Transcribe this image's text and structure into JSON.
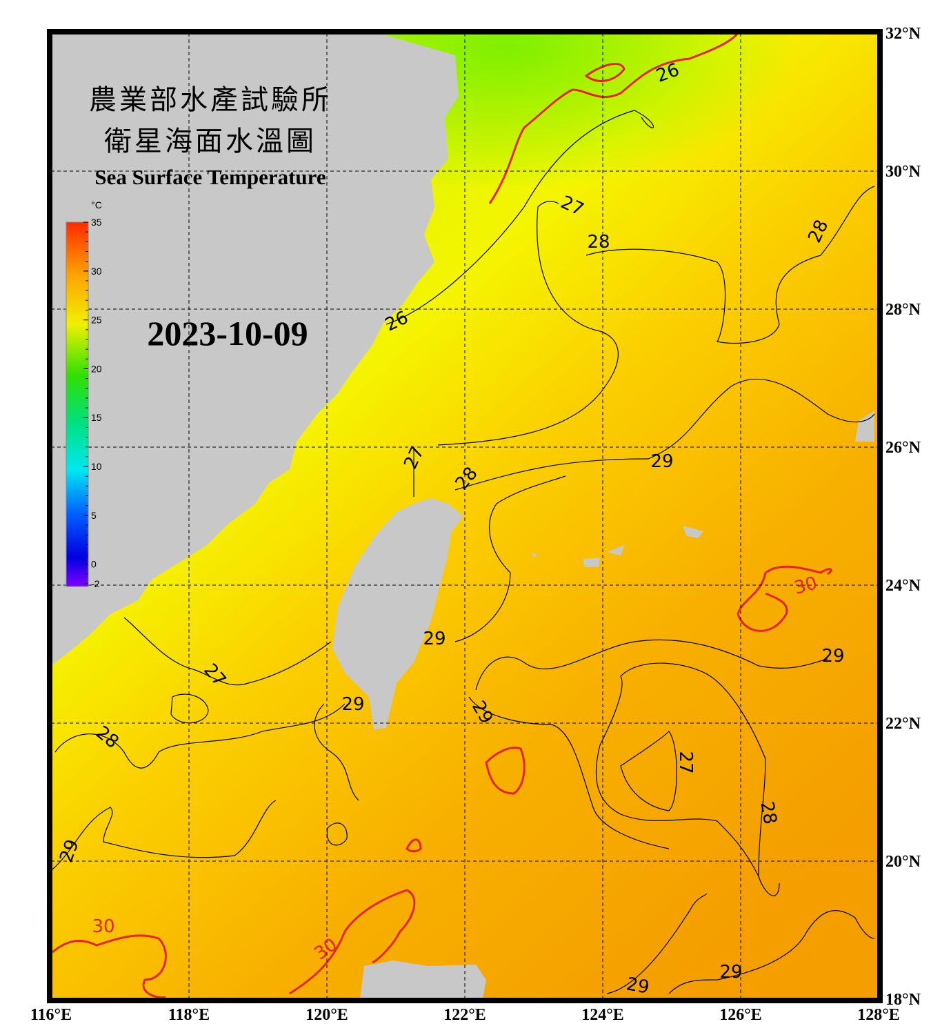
{
  "title_zh_1": "農業部水產試驗所",
  "title_zh_2": "衛星海面水溫圖",
  "title_en": "Sea Surface Temperature",
  "date": "2023-10-09",
  "colorbar": {
    "unit": "°C",
    "range": [
      -2,
      35
    ],
    "ticks": [
      35,
      30,
      25,
      20,
      15,
      10,
      5,
      0,
      -2
    ]
  },
  "lon_ticks": [
    {
      "value": 116,
      "label": "116°E"
    },
    {
      "value": 118,
      "label": "118°E"
    },
    {
      "value": 120,
      "label": "120°E"
    },
    {
      "value": 122,
      "label": "122°E"
    },
    {
      "value": 124,
      "label": "124°E"
    },
    {
      "value": 126,
      "label": "126°E"
    },
    {
      "value": 128,
      "label": "128°E"
    }
  ],
  "lat_ticks": [
    {
      "value": 32,
      "label": "32°N"
    },
    {
      "value": 30,
      "label": "30°N"
    },
    {
      "value": 28,
      "label": "28°N"
    },
    {
      "value": 26,
      "label": "26°N"
    },
    {
      "value": 24,
      "label": "24°N"
    },
    {
      "value": 22,
      "label": "22°N"
    },
    {
      "value": 20,
      "label": "20°N"
    },
    {
      "value": 18,
      "label": "18°N"
    }
  ],
  "contour_labels": [
    26,
    27,
    28,
    28,
    26,
    27,
    28,
    29,
    30,
    29,
    29,
    27,
    29,
    29,
    28,
    27,
    28,
    29,
    30,
    30,
    29,
    29
  ],
  "highlight_isotherm": 30,
  "highlight_color": "#e8231e",
  "land_color": "#c8c8c8"
}
